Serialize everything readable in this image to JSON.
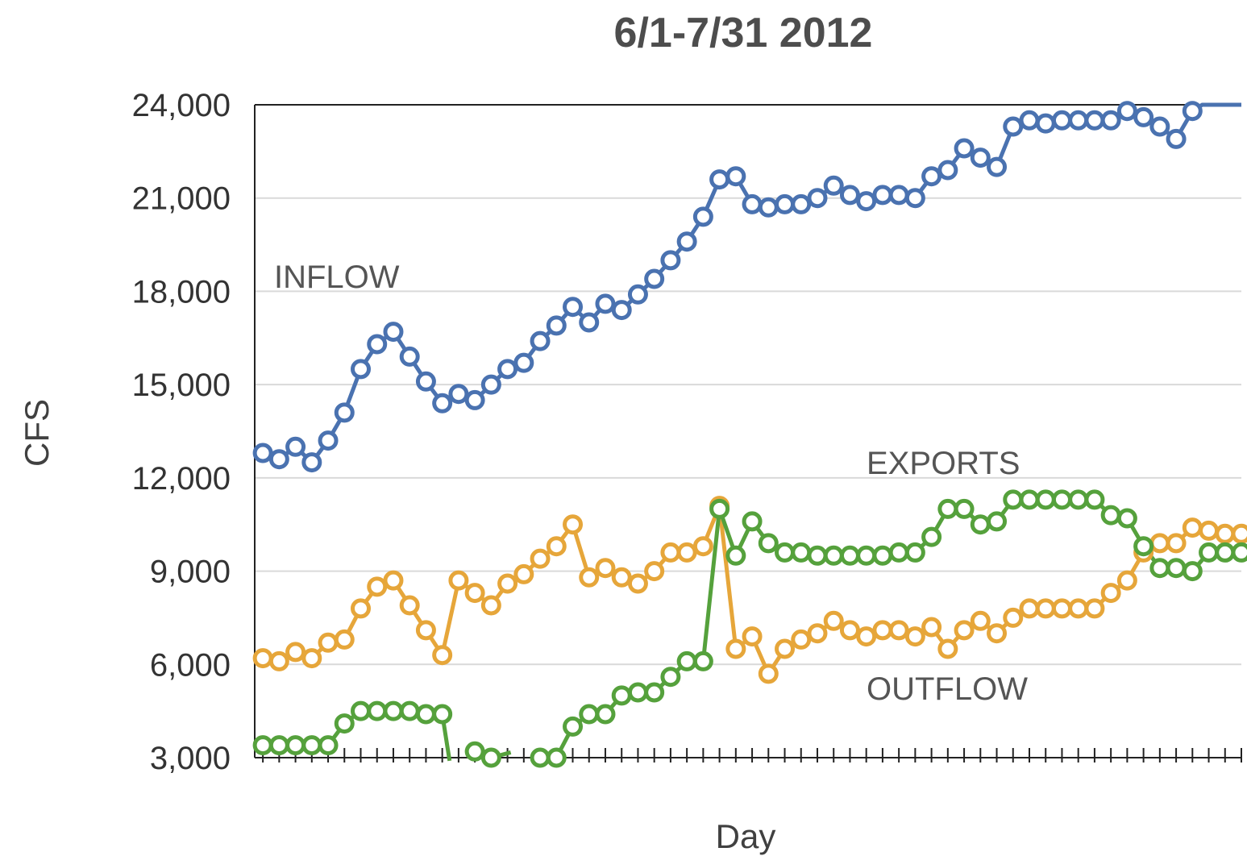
{
  "chart_data": {
    "type": "line",
    "title": "6/1-7/31 2012",
    "xlabel": "Day",
    "ylabel": "CFS",
    "ylim": [
      3000,
      24000
    ],
    "yticks": [
      "24,000",
      "21,000",
      "18,000",
      "15,000",
      "12,000",
      "9,000",
      "6,000",
      "3,000"
    ],
    "ytick_values": [
      24000,
      21000,
      18000,
      15000,
      12000,
      9000,
      6000,
      3000
    ],
    "grid": "horizontal",
    "x": [
      1,
      2,
      3,
      4,
      5,
      6,
      7,
      8,
      9,
      10,
      11,
      12,
      13,
      14,
      15,
      16,
      17,
      18,
      19,
      20,
      21,
      22,
      23,
      24,
      25,
      26,
      27,
      28,
      29,
      30,
      31,
      32,
      33,
      34,
      35,
      36,
      37,
      38,
      39,
      40,
      41,
      42,
      43,
      44,
      45,
      46,
      47,
      48,
      49,
      50,
      51,
      52,
      53,
      54,
      55,
      56,
      57,
      58,
      59,
      60,
      61
    ],
    "xlim": [
      0.5,
      61
    ],
    "series": [
      {
        "name": "INFLOW",
        "color": "#4a72b0",
        "values": [
          12800,
          12600,
          13000,
          12500,
          13200,
          14100,
          15500,
          16300,
          16700,
          15900,
          15100,
          14400,
          14700,
          14500,
          15000,
          15500,
          15700,
          16400,
          16900,
          17500,
          17000,
          17600,
          17400,
          17900,
          18400,
          19000,
          19600,
          20400,
          21600,
          21700,
          20800,
          20700,
          20800,
          20800,
          21000,
          21400,
          21100,
          20900,
          21100,
          21100,
          21000,
          21700,
          21900,
          22600,
          22300,
          22000,
          23300,
          23500,
          23400,
          23500,
          23500,
          23500,
          23500,
          23800,
          23600,
          23300,
          22900,
          23800,
          null,
          null,
          null
        ],
        "line_end": 24000
      },
      {
        "name": "EXPORTS",
        "color": "#e6a63a",
        "values": [
          6200,
          6100,
          6400,
          6200,
          6700,
          6800,
          7800,
          8500,
          8700,
          7900,
          7100,
          6300,
          8700,
          8300,
          7900,
          8600,
          8900,
          9400,
          9800,
          10500,
          8800,
          9100,
          8800,
          8600,
          9000,
          9600,
          9600,
          9800,
          11100,
          6500,
          6900,
          5700,
          6500,
          6800,
          7000,
          7400,
          7100,
          6900,
          7100,
          7100,
          6900,
          7200,
          6500,
          7100,
          7400,
          7000,
          7500,
          7800,
          7800,
          7800,
          7800,
          7800,
          8300,
          8700,
          9600,
          9900,
          9900,
          10400,
          10300,
          10200,
          10200
        ]
      },
      {
        "name": "OUTFLOW",
        "color": "#55a13c",
        "values": [
          3400,
          3400,
          3400,
          3400,
          3400,
          4100,
          4500,
          4500,
          4500,
          4500,
          4400,
          4400,
          null,
          3200,
          3000,
          null,
          null,
          3000,
          3000,
          4000,
          4400,
          4400,
          5000,
          5100,
          5100,
          5600,
          6100,
          6100,
          11000,
          9500,
          10600,
          9900,
          9600,
          9600,
          9500,
          9500,
          9500,
          9500,
          9500,
          9600,
          9600,
          10100,
          11000,
          11000,
          10500,
          10600,
          11300,
          11300,
          11300,
          11300,
          11300,
          11300,
          10800,
          10700,
          9800,
          9100,
          9100,
          9000,
          9600,
          9600,
          9600
        ],
        "drop_after_day": 12,
        "drop_to": 2900
      }
    ],
    "annotations": [
      "INFLOW",
      "EXPORTS",
      "OUTFLOW"
    ]
  }
}
